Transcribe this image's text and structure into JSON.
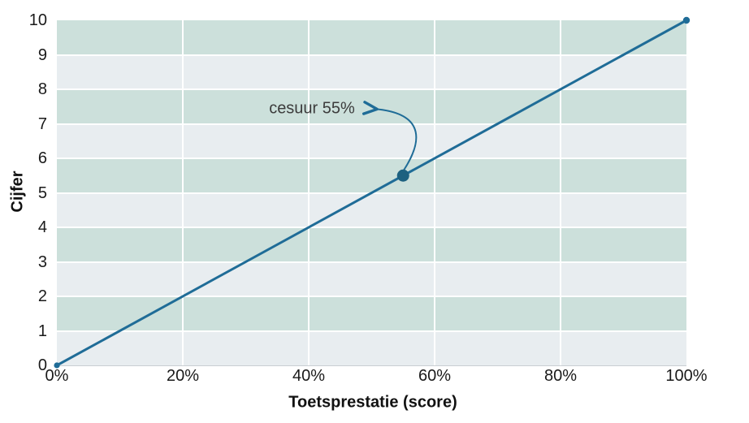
{
  "chart_data": {
    "type": "line",
    "title": "",
    "xlabel": "Toetsprestatie (score)",
    "ylabel": "Cijfer",
    "xlim": [
      0,
      100
    ],
    "ylim": [
      0,
      10
    ],
    "x_ticks": [
      {
        "value": 0,
        "label": "0%"
      },
      {
        "value": 20,
        "label": "20%"
      },
      {
        "value": 40,
        "label": "40%"
      },
      {
        "value": 60,
        "label": "60%"
      },
      {
        "value": 80,
        "label": "80%"
      },
      {
        "value": 100,
        "label": "100%"
      }
    ],
    "y_ticks": [
      {
        "value": 0,
        "label": "0"
      },
      {
        "value": 1,
        "label": "1"
      },
      {
        "value": 2,
        "label": "2"
      },
      {
        "value": 3,
        "label": "3"
      },
      {
        "value": 4,
        "label": "4"
      },
      {
        "value": 5,
        "label": "5"
      },
      {
        "value": 6,
        "label": "6"
      },
      {
        "value": 7,
        "label": "7"
      },
      {
        "value": 8,
        "label": "8"
      },
      {
        "value": 9,
        "label": "9"
      },
      {
        "value": 10,
        "label": "10"
      }
    ],
    "series": [
      {
        "name": "grade-line",
        "points": [
          [
            0,
            0
          ],
          [
            100,
            10
          ]
        ]
      }
    ],
    "annotation": {
      "label": "cesuur 55%",
      "x": 55,
      "y": 5.5
    },
    "legend": "none",
    "grid": "alternating horizontal bands with white gridlines every 1 unit; vertical white gridlines every 20%"
  },
  "colors": {
    "background": "#ffffff",
    "band_dark": "#cce0db",
    "band_light": "#e8edf0",
    "line": "#1f6c97",
    "marker": "#1d6180",
    "axis_line": "#c9ced2",
    "tick_text": "#1a1a1a",
    "annotation_text": "#3c3c3c"
  }
}
